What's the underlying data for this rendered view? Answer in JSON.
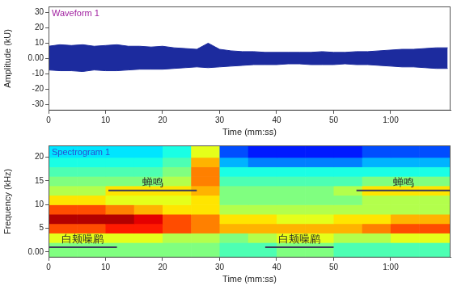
{
  "chart_data": [
    {
      "type": "line",
      "title": "Waveform 1",
      "x_label": "Time (mm:ss)",
      "y_label": "Amplitude (kU)",
      "x": [
        0,
        2,
        4,
        6,
        8,
        10,
        12,
        14,
        16,
        18,
        20,
        22,
        24,
        26,
        28,
        30,
        32,
        34,
        36,
        38,
        40,
        42,
        44,
        46,
        48,
        50,
        52,
        54,
        56,
        58,
        60,
        62,
        64,
        66,
        68,
        70
      ],
      "series": [
        {
          "color": "#1c2b9e",
          "values": [
            8,
            9,
            8.5,
            9,
            8,
            8.5,
            9,
            8,
            8,
            7.5,
            8,
            7,
            6.5,
            6,
            10,
            6,
            5,
            4.5,
            4.5,
            4,
            4,
            4,
            4,
            4,
            4.5,
            4,
            4,
            4.5,
            4.5,
            5,
            5.5,
            6,
            6,
            6.5,
            7,
            7
          ]
        },
        {
          "color": "#1c2b9e",
          "values": [
            -7.5,
            -8,
            -8,
            -8.5,
            -7.5,
            -8,
            -8,
            -7.5,
            -7,
            -7,
            -7,
            -6.5,
            -6,
            -5.5,
            -6,
            -5.5,
            -5,
            -4.5,
            -4,
            -4,
            -4,
            -3.5,
            -3.5,
            -4,
            -4,
            -4,
            -3.5,
            -4,
            -4,
            -4.5,
            -5,
            -5.5,
            -5.5,
            -6,
            -6.5,
            -6.5
          ]
        }
      ],
      "xlim": [
        0,
        70.5
      ],
      "ylim": [
        -34,
        34
      ],
      "xticks": [
        0,
        10,
        20,
        30,
        40,
        50,
        {
          "value": 60,
          "label": "1:00"
        }
      ],
      "yticks": [
        -30,
        -20,
        -10,
        {
          "value": 0,
          "label": "0.00"
        },
        10,
        20,
        30
      ],
      "grid": false
    },
    {
      "type": "heatmap",
      "title": "Spectrogram 1",
      "x_label": "Time (mm:ss)",
      "y_label": "Frequency (kHz)",
      "x_bins": [
        0,
        5,
        10,
        15,
        20,
        25,
        30,
        35,
        40,
        45,
        50,
        55,
        60,
        65,
        70.5
      ],
      "y_bins": [
        -1.2,
        2,
        4,
        6,
        8,
        10,
        12,
        14,
        16,
        18,
        20,
        22.5
      ],
      "z": [
        [
          5,
          5,
          5,
          5,
          5,
          5,
          4.5,
          4.5,
          5,
          5,
          4.5,
          4.5,
          4.5,
          4.5
        ],
        [
          6,
          6,
          6,
          6,
          5.5,
          5.5,
          5,
          5.5,
          6,
          6,
          5.5,
          5.5,
          6,
          6
        ],
        [
          8,
          8,
          8.5,
          8.5,
          8,
          7.5,
          7,
          7,
          7,
          7,
          7,
          7.5,
          8,
          8
        ],
        [
          9.5,
          9.5,
          9.5,
          9,
          8,
          7.5,
          6.5,
          6.5,
          6,
          6,
          6.5,
          6.5,
          7,
          7
        ],
        [
          8,
          8,
          7.5,
          7,
          6.5,
          6.5,
          5.5,
          5.5,
          5.5,
          5.5,
          5.5,
          5.5,
          5.5,
          5.5
        ],
        [
          6.5,
          6.5,
          6,
          6,
          6,
          6.5,
          5,
          5,
          5,
          5,
          5,
          5.5,
          5.5,
          5.5
        ],
        [
          5.5,
          5.5,
          6.5,
          6.5,
          6.5,
          7,
          5,
          5,
          5,
          5,
          5.5,
          6.5,
          6.5,
          6.5
        ],
        [
          5,
          5,
          5,
          5,
          5.5,
          7.5,
          4.5,
          4.5,
          4.5,
          4.5,
          4.5,
          5,
          5,
          5
        ],
        [
          4.5,
          4.5,
          4.5,
          4.5,
          5,
          7.5,
          4,
          4,
          4,
          4,
          4,
          4,
          4,
          4
        ],
        [
          4,
          4,
          4,
          4,
          4.5,
          7,
          3,
          2.5,
          2.5,
          2.5,
          2.5,
          3,
          3,
          3
        ],
        [
          3.5,
          3.5,
          3.5,
          3.5,
          4,
          6,
          2,
          1.5,
          1.5,
          1.5,
          1.5,
          2,
          2,
          2
        ]
      ],
      "zlim": [
        0,
        10
      ],
      "xlim": [
        0,
        70.5
      ],
      "ylim": [
        -1.2,
        22.5
      ],
      "xticks": [
        0,
        10,
        20,
        30,
        40,
        50,
        {
          "value": 60,
          "label": "1:00"
        }
      ],
      "yticks": [
        {
          "value": 0,
          "label": "0.00"
        },
        5,
        10,
        15,
        20
      ],
      "grid": false,
      "annotations": [
        {
          "text": "蝉鸣",
          "x": [
            10.5,
            26
          ],
          "y": 13
        },
        {
          "text": "蝉鸣",
          "x": [
            54,
            70.5
          ],
          "y": 13
        },
        {
          "text": "白颊噪鹛",
          "x": [
            0,
            12
          ],
          "y": 1
        },
        {
          "text": "白颊噪鹛",
          "x": [
            38,
            50
          ],
          "y": 1
        }
      ]
    }
  ]
}
